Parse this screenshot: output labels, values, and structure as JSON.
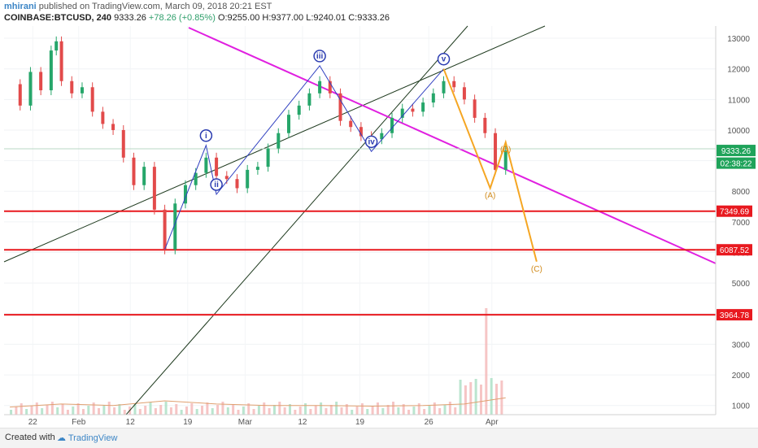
{
  "header": {
    "author": "mhirani",
    "published": "published on TradingView.com, March 09, 2018 20:21 EST",
    "symbol": "COINBASE:BTCUSD, 240",
    "last": "9333.26",
    "change": "+78.26 (+0.85%)",
    "o": "O:9255.00",
    "h": "H:9377.00",
    "l": "L:9240.01",
    "c": "C:9333.26"
  },
  "footer": {
    "created": "Created with",
    "brand": "TradingView"
  },
  "chart_data": {
    "type": "line",
    "title": "",
    "xlabel": "",
    "ylabel": "",
    "x_ticks": [
      "22",
      "Feb",
      "12",
      "19",
      "Mar",
      "12",
      "19",
      "26",
      "Apr"
    ],
    "y_ticks": [
      1000,
      2000,
      3000,
      4000,
      5000,
      6000,
      7000,
      8000,
      9000,
      10000,
      11000,
      12000,
      13000
    ],
    "ylim": [
      700,
      13400
    ],
    "price_tags": [
      {
        "label": "9333.26",
        "value": 9333.26,
        "color": "#1fa35a"
      },
      {
        "label": "02:38:22",
        "value": 8920,
        "color": "#1fa35a"
      }
    ],
    "horizontal_levels": [
      {
        "label": "7349.69",
        "value": 7349.69,
        "color": "#e8191f"
      },
      {
        "label": "6087.52",
        "value": 6087.52,
        "color": "#e8191f"
      },
      {
        "label": "3964.78",
        "value": 3964.78,
        "color": "#e8191f"
      }
    ],
    "series": [
      {
        "values": [
          [
            0,
            11500
          ],
          [
            2,
            10800
          ],
          [
            4,
            11900
          ],
          [
            6,
            11300
          ],
          [
            8,
            12600
          ],
          [
            9,
            12900
          ],
          [
            10,
            11600
          ],
          [
            12,
            11200
          ],
          [
            14,
            11400
          ],
          [
            16,
            10600
          ],
          [
            18,
            10200
          ],
          [
            20,
            10000
          ],
          [
            22,
            9100
          ],
          [
            24,
            8200
          ],
          [
            26,
            8800
          ],
          [
            28,
            7400
          ],
          [
            30,
            6100
          ],
          [
            32,
            7600
          ],
          [
            34,
            8200
          ],
          [
            36,
            8600
          ],
          [
            38,
            9100
          ],
          [
            40,
            8500
          ],
          [
            42,
            8400
          ],
          [
            44,
            8100
          ],
          [
            46,
            8700
          ],
          [
            48,
            8800
          ],
          [
            50,
            9400
          ],
          [
            52,
            9900
          ],
          [
            54,
            10500
          ],
          [
            56,
            10800
          ],
          [
            58,
            11200
          ],
          [
            60,
            11600
          ],
          [
            62,
            11200
          ],
          [
            64,
            10300
          ],
          [
            66,
            10100
          ],
          [
            68,
            9800
          ],
          [
            70,
            9700
          ],
          [
            72,
            9900
          ],
          [
            74,
            10400
          ],
          [
            76,
            10700
          ],
          [
            78,
            10600
          ],
          [
            80,
            10900
          ],
          [
            82,
            11200
          ],
          [
            84,
            11600
          ],
          [
            86,
            11400
          ],
          [
            88,
            11000
          ],
          [
            90,
            10400
          ],
          [
            92,
            9900
          ],
          [
            94,
            8700
          ],
          [
            96,
            9333
          ]
        ]
      },
      {
        "values": [
          [
            0,
            950
          ],
          [
            10,
            1050
          ],
          [
            20,
            1000
          ],
          [
            30,
            1150
          ],
          [
            40,
            1050
          ],
          [
            50,
            1000
          ],
          [
            60,
            1000
          ],
          [
            70,
            980
          ],
          [
            80,
            1000
          ],
          [
            88,
            1050
          ],
          [
            94,
            1200
          ],
          [
            96,
            1250
          ]
        ]
      }
    ],
    "waves": [
      {
        "label": "i",
        "x": 38,
        "y": 9500
      },
      {
        "label": "ii",
        "x": 40,
        "y": 7900
      },
      {
        "label": "iii",
        "x": 60,
        "y": 12100
      },
      {
        "label": "iv",
        "x": 70,
        "y": 9300
      },
      {
        "label": "v",
        "x": 84,
        "y": 12000
      },
      {
        "label": "(A)",
        "x": 93,
        "y": 8100
      },
      {
        "label": "(B)",
        "x": 96,
        "y": 9600
      },
      {
        "label": "(C)",
        "x": 102,
        "y": 5700
      }
    ],
    "x_range": [
      0,
      124
    ],
    "grid": true
  }
}
